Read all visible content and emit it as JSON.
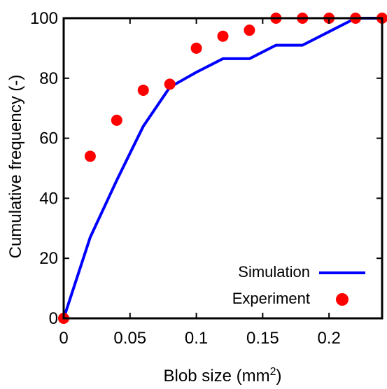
{
  "chart_data": {
    "type": "line",
    "title": "",
    "xlabel": "Blob size (mm",
    "xlabel_sup": "2",
    "xlabel_close": ")",
    "ylabel": "Cumulative frequency (-)",
    "xlim": [
      0,
      0.24
    ],
    "ylim": [
      0,
      100
    ],
    "x_ticks": [
      0,
      0.05,
      0.1,
      0.15,
      0.2
    ],
    "x_tick_labels": [
      "0",
      "0.05",
      "0.1",
      "0.15",
      "0.2"
    ],
    "y_ticks": [
      0,
      20,
      40,
      60,
      80,
      100
    ],
    "y_tick_labels": [
      "0",
      "20",
      "40",
      "60",
      "80",
      "100"
    ],
    "grid": false,
    "legend_position": "bottom-right",
    "series": [
      {
        "name": "Simulation",
        "style": "line",
        "color": "#0000ff",
        "x": [
          0,
          0.02,
          0.04,
          0.06,
          0.08,
          0.1,
          0.12,
          0.14,
          0.16,
          0.18,
          0.2,
          0.22,
          0.24
        ],
        "y": [
          0,
          27,
          46,
          64,
          77,
          82,
          86.5,
          86.5,
          91,
          91,
          95.5,
          100,
          100
        ]
      },
      {
        "name": "Experiment",
        "style": "scatter",
        "color": "#ff0000",
        "x": [
          0,
          0.02,
          0.04,
          0.06,
          0.08,
          0.1,
          0.12,
          0.14,
          0.16,
          0.18,
          0.2,
          0.22,
          0.24
        ],
        "y": [
          0,
          54,
          66,
          76,
          78,
          90,
          94,
          96,
          100,
          100,
          100,
          100,
          100
        ]
      }
    ]
  }
}
